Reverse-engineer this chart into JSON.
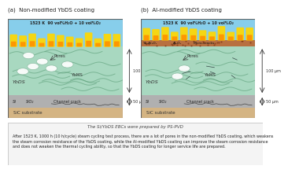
{
  "title_a": "(a)  Non-modified YbDS coating",
  "title_b": "(b)  Al-modified YbDS coating",
  "gas_label": "1523 K  90 vol%H₂O + 10 vol%O₂",
  "label_100um": "100 μm",
  "label_50um": "50 μm",
  "sic_label": "SiC substrate",
  "bottom_caption": "The Si/YbDS EBCs were prepared by PS-PVD",
  "bottom_text": "After 1523 K, 1000 h (10 h/cycle) steam cycling test process, there are a lot of pores in the non-modified YbDS coating, which weakens\nthe steam corrosion resistance of the YbDS coating, while the Al-modified YbDS coating can improve the steam corrosion resistance\nand does not weaken the thermal cycling ability, so that the YbDS coating for longer service life are prepared.",
  "colors": {
    "sky_blue": "#87CEEB",
    "flame_yellow": "#FFD700",
    "flame_orange": "#FF8C00",
    "ebc_green": "#A8D8C0",
    "ebc_wave": "#6BAE88",
    "si_layer": "#B0B0B0",
    "sic_substrate": "#D4B483",
    "oxide_brown": "#B87040",
    "pore_white": "#FFFFFF",
    "bg": "#FFFFFF"
  }
}
